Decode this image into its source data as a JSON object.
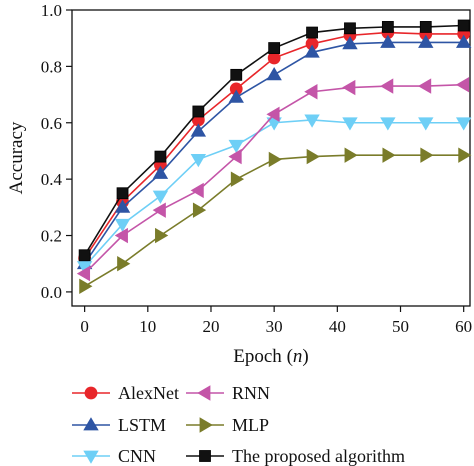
{
  "chart_data": {
    "type": "line",
    "xlabel": "Epoch",
    "xlabel_var": "n",
    "ylabel": "Accuracy",
    "xlim": [
      -2,
      61
    ],
    "ylim": [
      -0.05,
      1.0
    ],
    "xticks": [
      0,
      10,
      20,
      30,
      40,
      50,
      60
    ],
    "yticks": [
      0.0,
      0.2,
      0.4,
      0.6,
      0.8,
      1.0
    ],
    "xticklabels": [
      "0",
      "10",
      "20",
      "30",
      "40",
      "50",
      "60"
    ],
    "yticklabels": [
      "0.0",
      "0.2",
      "0.4",
      "0.6",
      "0.8",
      "1.0"
    ],
    "grid": false,
    "legend_position": "bottom",
    "x": [
      0,
      6,
      12,
      18,
      24,
      30,
      36,
      42,
      48,
      54,
      60
    ],
    "series": [
      {
        "name": "AlexNet",
        "color": "#e8262a",
        "marker": "circle",
        "values": [
          0.12,
          0.32,
          0.45,
          0.61,
          0.72,
          0.83,
          0.88,
          0.91,
          0.92,
          0.915,
          0.915
        ]
      },
      {
        "name": "LSTM",
        "color": "#2e55a4",
        "marker": "triangle-up",
        "values": [
          0.1,
          0.3,
          0.42,
          0.57,
          0.69,
          0.77,
          0.85,
          0.88,
          0.885,
          0.885,
          0.885
        ]
      },
      {
        "name": "CNN",
        "color": "#6ecff6",
        "marker": "triangle-down",
        "values": [
          0.09,
          0.24,
          0.34,
          0.47,
          0.52,
          0.6,
          0.61,
          0.6,
          0.6,
          0.6,
          0.6
        ]
      },
      {
        "name": "RNN",
        "color": "#c455a8",
        "marker": "triangle-left",
        "values": [
          0.065,
          0.2,
          0.29,
          0.36,
          0.48,
          0.63,
          0.71,
          0.725,
          0.73,
          0.73,
          0.735
        ]
      },
      {
        "name": "MLP",
        "color": "#7a7c2a",
        "marker": "triangle-right",
        "values": [
          0.02,
          0.1,
          0.2,
          0.29,
          0.4,
          0.47,
          0.48,
          0.485,
          0.485,
          0.485,
          0.485
        ]
      },
      {
        "name": "The proposed algorithm",
        "color": "#111111",
        "marker": "square",
        "values": [
          0.13,
          0.35,
          0.48,
          0.64,
          0.77,
          0.865,
          0.92,
          0.935,
          0.94,
          0.94,
          0.945
        ]
      }
    ]
  }
}
